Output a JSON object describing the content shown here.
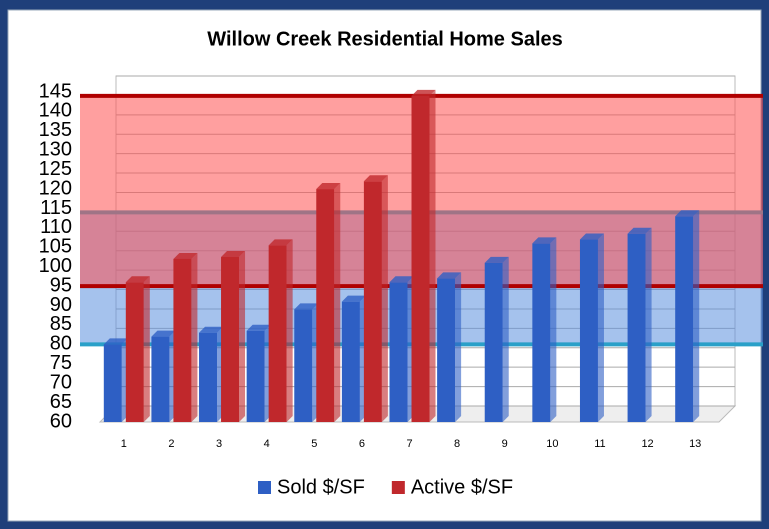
{
  "chart_data": {
    "type": "bar",
    "title": "Willow Creek Residential Home Sales",
    "categories": [
      "1",
      "2",
      "3",
      "4",
      "5",
      "6",
      "7",
      "8",
      "9",
      "10",
      "11",
      "12",
      "13"
    ],
    "series": [
      {
        "name": "Sold $/SF",
        "color": "#2e5fc4",
        "values": [
          80,
          82,
          83,
          83.5,
          89,
          91,
          96,
          97,
          101,
          106,
          107,
          108.5,
          113
        ]
      },
      {
        "name": "Active $/SF",
        "color": "#c0282c",
        "values": [
          96,
          102,
          102.5,
          105.5,
          120,
          122,
          144,
          null,
          null,
          null,
          null,
          null,
          null
        ]
      }
    ],
    "ylim": [
      60,
      145
    ],
    "yticks": [
      60,
      65,
      70,
      75,
      80,
      85,
      90,
      95,
      100,
      105,
      110,
      115,
      120,
      125,
      130,
      135,
      140,
      145
    ],
    "grid": true,
    "legend": "bottom",
    "bands": [
      {
        "from": 80,
        "to": 114,
        "color": "#5b8fde",
        "line_color": "#2aa0c8"
      },
      {
        "from": 95,
        "to": 144,
        "color": "#ff5050",
        "line_color": "#b00000"
      }
    ]
  }
}
